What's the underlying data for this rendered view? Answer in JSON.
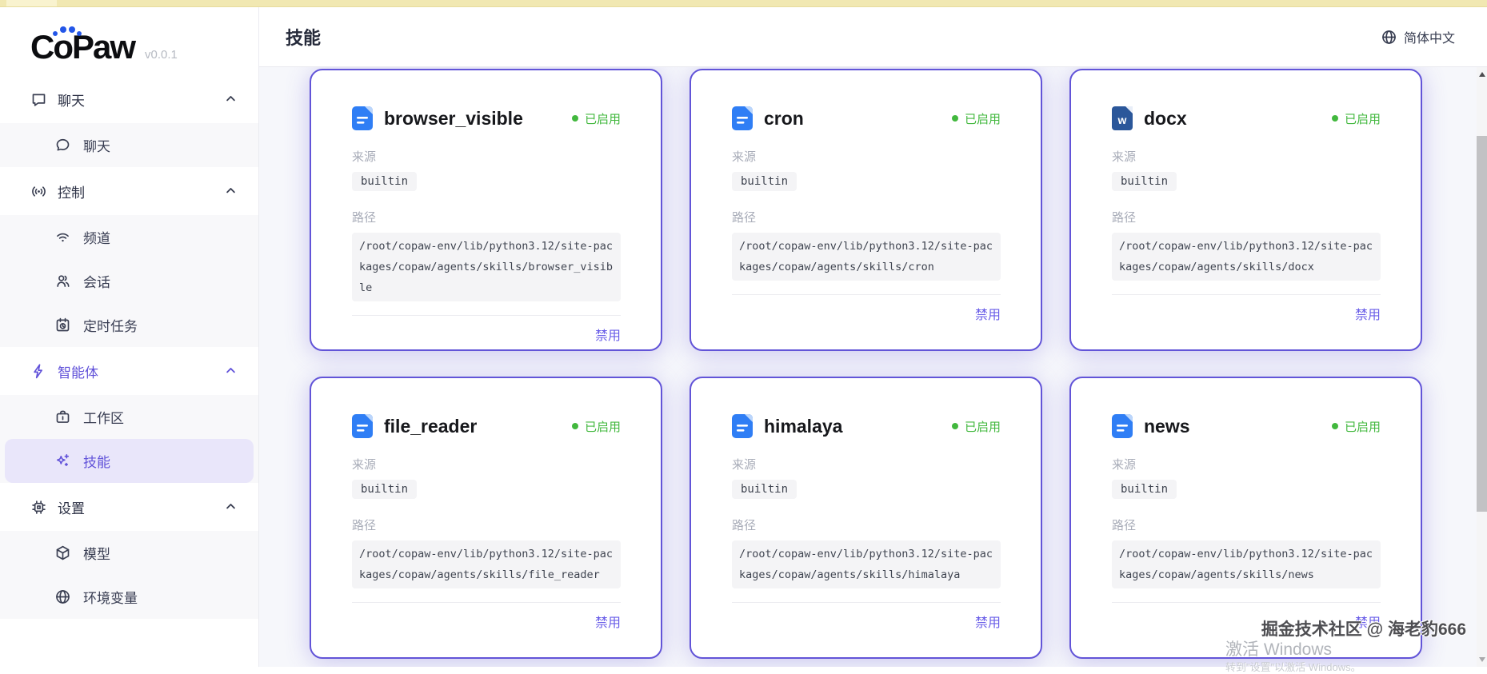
{
  "colors": {
    "accent": "#6152d9",
    "card_border": "#6254d8",
    "enabled_green": "#42b83e",
    "content_bg": "#f6f7fb",
    "active_pill": "#e9e6fa",
    "word_blue": "#2b579a",
    "doc_blue": "#2f7ef5"
  },
  "logo": {
    "text": "CoPaw",
    "version": "v0.0.1"
  },
  "header": {
    "title": "技能",
    "language": "简体中文",
    "language_icon": "globe-icon"
  },
  "sidebar": {
    "sections": [
      {
        "key": "chat",
        "label": "聊天",
        "icon": "chat-square-icon",
        "chevron": "chevron-up-icon",
        "active": false,
        "items": [
          {
            "key": "chat",
            "label": "聊天",
            "icon": "chat-round-icon",
            "active": false
          }
        ]
      },
      {
        "key": "control",
        "label": "控制",
        "icon": "broadcast-icon",
        "chevron": "chevron-up-icon",
        "active": false,
        "items": [
          {
            "key": "channels",
            "label": "频道",
            "icon": "wifi-icon",
            "active": false
          },
          {
            "key": "sessions",
            "label": "会话",
            "icon": "users-icon",
            "active": false
          },
          {
            "key": "scheduled-tasks",
            "label": "定时任务",
            "icon": "calendar-clock-icon",
            "active": false
          }
        ]
      },
      {
        "key": "agents",
        "label": "智能体",
        "icon": "lightning-icon",
        "chevron": "chevron-up-icon",
        "active": true,
        "items": [
          {
            "key": "workspace",
            "label": "工作区",
            "icon": "briefcase-icon",
            "active": false
          },
          {
            "key": "skills",
            "label": "技能",
            "icon": "sparkles-icon",
            "active": true
          }
        ]
      },
      {
        "key": "settings",
        "label": "设置",
        "icon": "chip-icon",
        "chevron": "chevron-up-icon",
        "active": false,
        "items": [
          {
            "key": "models",
            "label": "模型",
            "icon": "cube-icon",
            "active": false
          },
          {
            "key": "env-vars",
            "label": "环境变量",
            "icon": "globe-icon",
            "active": false
          }
        ]
      }
    ]
  },
  "card_labels": {
    "source": "来源",
    "path": "路径",
    "disable": "禁用",
    "enabled": "已启用"
  },
  "cards": [
    {
      "name": "browser_visible",
      "icon": "file-doc-icon",
      "status": "已启用",
      "source": "builtin",
      "path": "/root/copaw-env/lib/python3.12/site-packages/copaw/agents/skills/browser_visible"
    },
    {
      "name": "cron",
      "icon": "file-doc-icon",
      "status": "已启用",
      "source": "builtin",
      "path": "/root/copaw-env/lib/python3.12/site-packages/copaw/agents/skills/cron"
    },
    {
      "name": "docx",
      "icon": "file-word-icon",
      "status": "已启用",
      "source": "builtin",
      "path": "/root/copaw-env/lib/python3.12/site-packages/copaw/agents/skills/docx"
    },
    {
      "name": "file_reader",
      "icon": "file-doc-icon",
      "status": "已启用",
      "source": "builtin",
      "path": "/root/copaw-env/lib/python3.12/site-packages/copaw/agents/skills/file_reader"
    },
    {
      "name": "himalaya",
      "icon": "file-doc-icon",
      "status": "已启用",
      "source": "builtin",
      "path": "/root/copaw-env/lib/python3.12/site-packages/copaw/agents/skills/himalaya"
    },
    {
      "name": "news",
      "icon": "file-doc-icon",
      "status": "已启用",
      "source": "builtin",
      "path": "/root/copaw-env/lib/python3.12/site-packages/copaw/agents/skills/news"
    }
  ],
  "watermarks": {
    "line1": "掘金技术社区 @ 海老豹666",
    "line2": "激活 Windows",
    "line3": "转到\"设置\"以激活 Windows。"
  }
}
